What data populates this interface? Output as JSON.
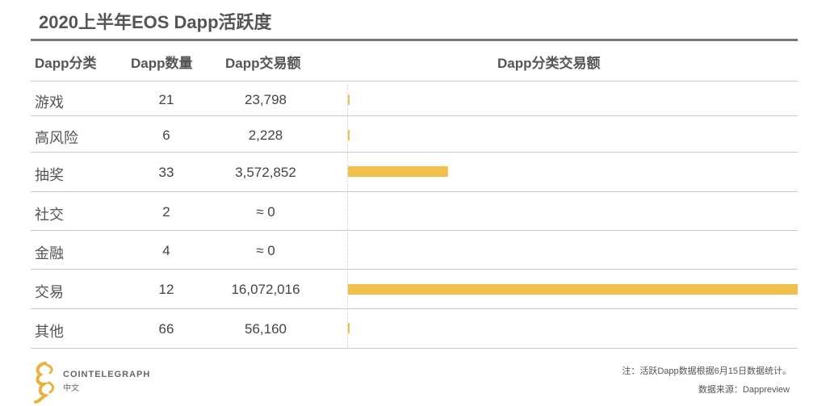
{
  "title": "2020上半年EOS Dapp活跃度",
  "headers": {
    "category": "Dapp分类",
    "count": "Dapp数量",
    "volume": "Dapp交易额",
    "chart": "Dapp分类交易额"
  },
  "rows": [
    {
      "category": "游戏",
      "count": "21",
      "volume": "23,798"
    },
    {
      "category": "高风险",
      "count": "6",
      "volume": "2,228"
    },
    {
      "category": "抽奖",
      "count": "33",
      "volume": "3,572,852"
    },
    {
      "category": "社交",
      "count": "2",
      "volume": "≈ 0"
    },
    {
      "category": "金融",
      "count": "4",
      "volume": "≈ 0"
    },
    {
      "category": "交易",
      "count": "12",
      "volume": "16,072,016"
    },
    {
      "category": "其他",
      "count": "66",
      "volume": "56,160"
    }
  ],
  "chart_data": {
    "type": "bar",
    "orientation": "horizontal",
    "categories": [
      "游戏",
      "高风险",
      "抽奖",
      "社交",
      "金融",
      "交易",
      "其他"
    ],
    "values": [
      23798,
      2228,
      3572852,
      0,
      0,
      16072016,
      56160
    ],
    "title": "Dapp分类交易额",
    "xlim": [
      0,
      16072016
    ],
    "grid": false,
    "bar_color": "#f0bf4c"
  },
  "footer": {
    "brand": "COINTELEGRAPH",
    "brand_sub": "中文",
    "note": "注：活跃Dapp数据根据6月15日数据统计。",
    "source": "数据来源：Dappreview"
  },
  "colors": {
    "bar": "#f0bf4c",
    "logo": "#e6b43c",
    "rule": "#777777"
  }
}
